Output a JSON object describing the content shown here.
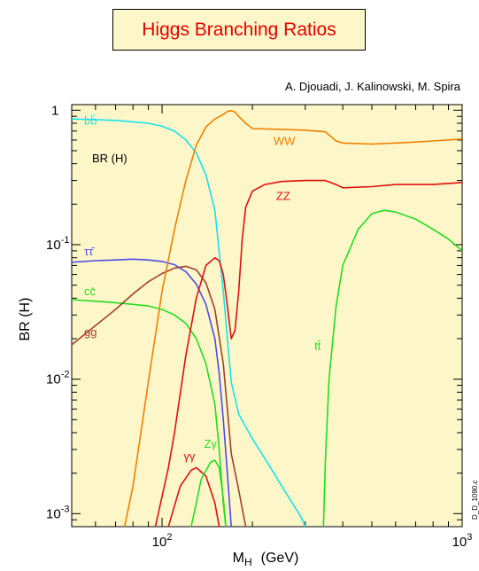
{
  "chart_data": {
    "type": "line",
    "title": "Higgs Branching Ratios",
    "credit": "A. Djouadi,  J. Kalinowski,  M. Spira",
    "annotation": "BR (H)",
    "figure_id": "D_D_1090.c",
    "xlabel": "M",
    "xlabel_sub": "H",
    "xlabel_unit": "(GeV)",
    "ylabel": "BR (H)",
    "xscale": "log",
    "yscale": "log",
    "xlim": [
      50,
      1000
    ],
    "ylim": [
      0.0008,
      1.1
    ],
    "x_ticks": [
      {
        "value": 100,
        "base": "10",
        "exp": "2"
      },
      {
        "value": 1000,
        "base": "10",
        "exp": "3"
      }
    ],
    "y_ticks": [
      {
        "value": 1,
        "base": "1",
        "exp": ""
      },
      {
        "value": 0.1,
        "base": "10",
        "exp": "-1"
      },
      {
        "value": 0.01,
        "base": "10",
        "exp": "-2"
      },
      {
        "value": 0.001,
        "base": "10",
        "exp": "-3"
      }
    ],
    "plot_background": "#fdf6c8",
    "series": [
      {
        "name": "bb̄",
        "color": "#18e2f0",
        "label_pos": [
          55,
          0.78
        ],
        "points": [
          [
            50,
            0.86
          ],
          [
            60,
            0.85
          ],
          [
            70,
            0.84
          ],
          [
            80,
            0.82
          ],
          [
            90,
            0.8
          ],
          [
            100,
            0.76
          ],
          [
            110,
            0.7
          ],
          [
            120,
            0.6
          ],
          [
            130,
            0.48
          ],
          [
            140,
            0.33
          ],
          [
            150,
            0.18
          ],
          [
            160,
            0.045
          ],
          [
            165,
            0.02
          ],
          [
            170,
            0.0095
          ],
          [
            180,
            0.0055
          ],
          [
            200,
            0.0036
          ],
          [
            230,
            0.0022
          ],
          [
            260,
            0.0014
          ],
          [
            290,
            0.00095
          ],
          [
            300,
            0.0008
          ]
        ]
      },
      {
        "name": "ττ̄",
        "color": "#4c4ce6",
        "label_pos": [
          55,
          0.083
        ],
        "points": [
          [
            50,
            0.074
          ],
          [
            60,
            0.076
          ],
          [
            70,
            0.077
          ],
          [
            80,
            0.078
          ],
          [
            90,
            0.077
          ],
          [
            100,
            0.075
          ],
          [
            110,
            0.071
          ],
          [
            120,
            0.063
          ],
          [
            130,
            0.051
          ],
          [
            140,
            0.036
          ],
          [
            150,
            0.02
          ],
          [
            155,
            0.011
          ],
          [
            160,
            0.005
          ],
          [
            165,
            0.002
          ],
          [
            170,
            0.0008
          ]
        ]
      },
      {
        "name": "cc̄",
        "color": "#22dd22",
        "label_pos": [
          55,
          0.042
        ],
        "points": [
          [
            50,
            0.039
          ],
          [
            60,
            0.038
          ],
          [
            70,
            0.037
          ],
          [
            80,
            0.036
          ],
          [
            90,
            0.035
          ],
          [
            100,
            0.033
          ],
          [
            110,
            0.03
          ],
          [
            120,
            0.026
          ],
          [
            130,
            0.02
          ],
          [
            140,
            0.013
          ],
          [
            150,
            0.0065
          ],
          [
            155,
            0.003
          ],
          [
            160,
            0.0012
          ],
          [
            163,
            0.0008
          ]
        ]
      },
      {
        "name": "gg",
        "color": "#a04030",
        "label_pos": [
          55,
          0.021
        ],
        "points": [
          [
            50,
            0.018
          ],
          [
            60,
            0.025
          ],
          [
            70,
            0.033
          ],
          [
            80,
            0.043
          ],
          [
            90,
            0.053
          ],
          [
            100,
            0.061
          ],
          [
            110,
            0.067
          ],
          [
            120,
            0.069
          ],
          [
            130,
            0.065
          ],
          [
            140,
            0.052
          ],
          [
            150,
            0.033
          ],
          [
            160,
            0.013
          ],
          [
            165,
            0.006
          ],
          [
            170,
            0.0028
          ],
          [
            180,
            0.0015
          ],
          [
            190,
            0.0008
          ]
        ]
      },
      {
        "name": "γγ",
        "color": "#e01010",
        "label_pos": [
          118,
          0.0025
        ],
        "points": [
          [
            105,
            0.0008
          ],
          [
            115,
            0.0016
          ],
          [
            125,
            0.0021
          ],
          [
            130,
            0.0022
          ],
          [
            140,
            0.0019
          ],
          [
            150,
            0.0012
          ],
          [
            155,
            0.0008
          ]
        ]
      },
      {
        "name": "Zγ",
        "color": "#22dd22",
        "label_pos": [
          138,
          0.0031
        ],
        "points": [
          [
            125,
            0.0008
          ],
          [
            130,
            0.0012
          ],
          [
            135,
            0.0018
          ],
          [
            145,
            0.0024
          ],
          [
            150,
            0.0025
          ],
          [
            155,
            0.0022
          ],
          [
            160,
            0.0013
          ],
          [
            163,
            0.0008
          ]
        ]
      },
      {
        "name": "WW",
        "color": "#f08000",
        "label_pos": [
          235,
          0.55
        ],
        "points": [
          [
            75,
            0.0008
          ],
          [
            80,
            0.0016
          ],
          [
            90,
            0.0095
          ],
          [
            100,
            0.045
          ],
          [
            110,
            0.13
          ],
          [
            120,
            0.3
          ],
          [
            130,
            0.55
          ],
          [
            140,
            0.75
          ],
          [
            150,
            0.86
          ],
          [
            160,
            0.93
          ],
          [
            165,
            0.98
          ],
          [
            170,
            0.99
          ],
          [
            175,
            0.97
          ],
          [
            180,
            0.9
          ],
          [
            190,
            0.8
          ],
          [
            200,
            0.73
          ],
          [
            250,
            0.72
          ],
          [
            300,
            0.71
          ],
          [
            350,
            0.69
          ],
          [
            380,
            0.59
          ],
          [
            400,
            0.57
          ],
          [
            500,
            0.56
          ],
          [
            600,
            0.57
          ],
          [
            700,
            0.58
          ],
          [
            800,
            0.59
          ],
          [
            1000,
            0.61
          ]
        ]
      },
      {
        "name": "ZZ",
        "color": "#e01010",
        "label_pos": [
          240,
          0.215
        ],
        "points": [
          [
            95,
            0.0008
          ],
          [
            105,
            0.0022
          ],
          [
            110,
            0.004
          ],
          [
            120,
            0.015
          ],
          [
            130,
            0.04
          ],
          [
            140,
            0.07
          ],
          [
            150,
            0.08
          ],
          [
            155,
            0.076
          ],
          [
            160,
            0.06
          ],
          [
            165,
            0.035
          ],
          [
            170,
            0.02
          ],
          [
            175,
            0.023
          ],
          [
            180,
            0.045
          ],
          [
            185,
            0.11
          ],
          [
            190,
            0.19
          ],
          [
            200,
            0.25
          ],
          [
            220,
            0.28
          ],
          [
            250,
            0.295
          ],
          [
            300,
            0.3
          ],
          [
            350,
            0.3
          ],
          [
            380,
            0.28
          ],
          [
            400,
            0.265
          ],
          [
            500,
            0.27
          ],
          [
            600,
            0.28
          ],
          [
            800,
            0.28
          ],
          [
            1000,
            0.29
          ]
        ]
      },
      {
        "name": "tt̄",
        "color": "#22dd22",
        "label_pos": [
          322,
          0.0165
        ],
        "points": [
          [
            345,
            0.0008
          ],
          [
            350,
            0.0025
          ],
          [
            360,
            0.01
          ],
          [
            380,
            0.035
          ],
          [
            400,
            0.07
          ],
          [
            450,
            0.13
          ],
          [
            500,
            0.17
          ],
          [
            550,
            0.18
          ],
          [
            600,
            0.175
          ],
          [
            700,
            0.155
          ],
          [
            800,
            0.13
          ],
          [
            900,
            0.11
          ],
          [
            1000,
            0.09
          ]
        ]
      }
    ]
  }
}
